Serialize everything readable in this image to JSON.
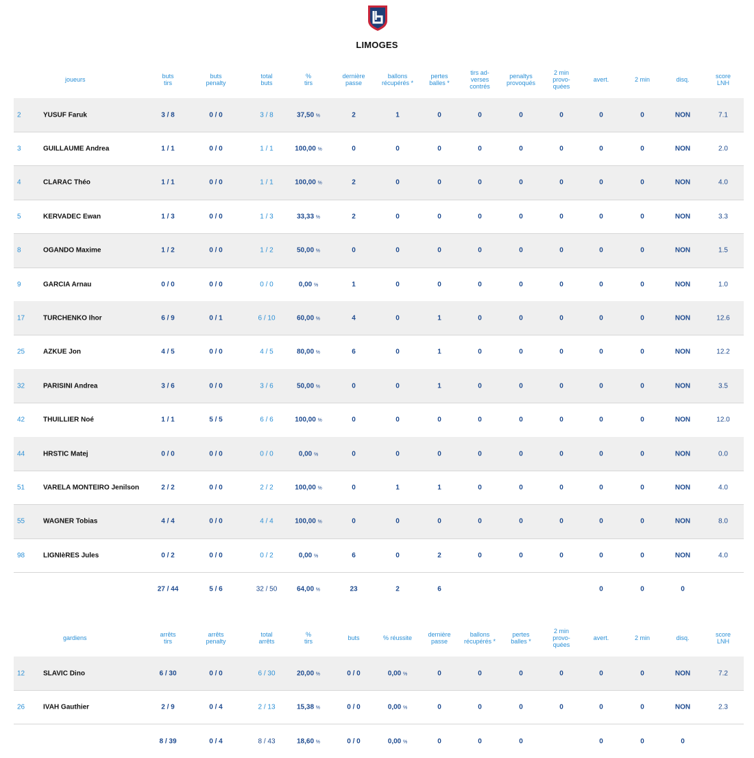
{
  "team": "LIMOGES",
  "logo_icon": "lnh-shield-icon",
  "players_headers": [
    "joueurs",
    "buts\ntirs",
    "buts\npenalty",
    "total\nbuts",
    "%\ntirs",
    "dernière\npasse",
    "ballons\nrécupérés *",
    "pertes\nballes *",
    "tirs ad-\nverses\ncontrés",
    "penaltys\nprovoqués",
    "2 min\nprovo-\nquées",
    "avert.",
    "2 min",
    "disq.",
    "score\nLNH"
  ],
  "players": [
    {
      "num": "2",
      "name": "YUSUF Faruk",
      "buts_tirs": "3 / 8",
      "penalty": "0 / 0",
      "total": "3 / 8",
      "pct": "37,50",
      "pct_unit": "%",
      "passe": "2",
      "recup": "1",
      "pertes": "0",
      "contres": "0",
      "penaltys": "0",
      "provo": "0",
      "avert": "0",
      "min2": "0",
      "disq": "NON",
      "score": "7.1"
    },
    {
      "num": "3",
      "name": "GUILLAUME Andrea",
      "buts_tirs": "1 / 1",
      "penalty": "0 / 0",
      "total": "1 / 1",
      "pct": "100,00",
      "pct_unit": "%",
      "passe": "0",
      "recup": "0",
      "pertes": "0",
      "contres": "0",
      "penaltys": "0",
      "provo": "0",
      "avert": "0",
      "min2": "0",
      "disq": "NON",
      "score": "2.0"
    },
    {
      "num": "4",
      "name": "CLARAC Théo",
      "buts_tirs": "1 / 1",
      "penalty": "0 / 0",
      "total": "1 / 1",
      "pct": "100,00",
      "pct_unit": "%",
      "passe": "2",
      "recup": "0",
      "pertes": "0",
      "contres": "0",
      "penaltys": "0",
      "provo": "0",
      "avert": "0",
      "min2": "0",
      "disq": "NON",
      "score": "4.0"
    },
    {
      "num": "5",
      "name": "KERVADEC Ewan",
      "buts_tirs": "1 / 3",
      "penalty": "0 / 0",
      "total": "1 / 3",
      "pct": "33,33",
      "pct_unit": "%",
      "passe": "2",
      "recup": "0",
      "pertes": "0",
      "contres": "0",
      "penaltys": "0",
      "provo": "0",
      "avert": "0",
      "min2": "0",
      "disq": "NON",
      "score": "3.3"
    },
    {
      "num": "8",
      "name": "OGANDO Maxime",
      "buts_tirs": "1 / 2",
      "penalty": "0 / 0",
      "total": "1 / 2",
      "pct": "50,00",
      "pct_unit": "%",
      "passe": "0",
      "recup": "0",
      "pertes": "0",
      "contres": "0",
      "penaltys": "0",
      "provo": "0",
      "avert": "0",
      "min2": "0",
      "disq": "NON",
      "score": "1.5"
    },
    {
      "num": "9",
      "name": "GARCIA Arnau",
      "buts_tirs": "0 / 0",
      "penalty": "0 / 0",
      "total": "0 / 0",
      "pct": "0,00",
      "pct_unit": "%",
      "passe": "1",
      "recup": "0",
      "pertes": "0",
      "contres": "0",
      "penaltys": "0",
      "provo": "0",
      "avert": "0",
      "min2": "0",
      "disq": "NON",
      "score": "1.0"
    },
    {
      "num": "17",
      "name": "TURCHENKO Ihor",
      "buts_tirs": "6 / 9",
      "penalty": "0 / 1",
      "total": "6 / 10",
      "pct": "60,00",
      "pct_unit": "%",
      "passe": "4",
      "recup": "0",
      "pertes": "1",
      "contres": "0",
      "penaltys": "0",
      "provo": "0",
      "avert": "0",
      "min2": "0",
      "disq": "NON",
      "score": "12.6"
    },
    {
      "num": "25",
      "name": "AZKUE Jon",
      "buts_tirs": "4 / 5",
      "penalty": "0 / 0",
      "total": "4 / 5",
      "pct": "80,00",
      "pct_unit": "%",
      "passe": "6",
      "recup": "0",
      "pertes": "1",
      "contres": "0",
      "penaltys": "0",
      "provo": "0",
      "avert": "0",
      "min2": "0",
      "disq": "NON",
      "score": "12.2"
    },
    {
      "num": "32",
      "name": "PARISINI Andrea",
      "buts_tirs": "3 / 6",
      "penalty": "0 / 0",
      "total": "3 / 6",
      "pct": "50,00",
      "pct_unit": "%",
      "passe": "0",
      "recup": "0",
      "pertes": "1",
      "contres": "0",
      "penaltys": "0",
      "provo": "0",
      "avert": "0",
      "min2": "0",
      "disq": "NON",
      "score": "3.5"
    },
    {
      "num": "42",
      "name": "THUILLIER Noé",
      "buts_tirs": "1 / 1",
      "penalty": "5 / 5",
      "total": "6 / 6",
      "pct": "100,00",
      "pct_unit": "%",
      "passe": "0",
      "recup": "0",
      "pertes": "0",
      "contres": "0",
      "penaltys": "0",
      "provo": "0",
      "avert": "0",
      "min2": "0",
      "disq": "NON",
      "score": "12.0"
    },
    {
      "num": "44",
      "name": "HRSTIC Matej",
      "buts_tirs": "0 / 0",
      "penalty": "0 / 0",
      "total": "0 / 0",
      "pct": "0,00",
      "pct_unit": "%",
      "passe": "0",
      "recup": "0",
      "pertes": "0",
      "contres": "0",
      "penaltys": "0",
      "provo": "0",
      "avert": "0",
      "min2": "0",
      "disq": "NON",
      "score": "0.0"
    },
    {
      "num": "51",
      "name": "VARELA MONTEIRO Jenilson",
      "buts_tirs": "2 / 2",
      "penalty": "0 / 0",
      "total": "2 / 2",
      "pct": "100,00",
      "pct_unit": "%",
      "passe": "0",
      "recup": "1",
      "pertes": "1",
      "contres": "0",
      "penaltys": "0",
      "provo": "0",
      "avert": "0",
      "min2": "0",
      "disq": "NON",
      "score": "4.0"
    },
    {
      "num": "55",
      "name": "WAGNER Tobias",
      "buts_tirs": "4 / 4",
      "penalty": "0 / 0",
      "total": "4 / 4",
      "pct": "100,00",
      "pct_unit": "%",
      "passe": "0",
      "recup": "0",
      "pertes": "0",
      "contres": "0",
      "penaltys": "0",
      "provo": "0",
      "avert": "0",
      "min2": "0",
      "disq": "NON",
      "score": "8.0"
    },
    {
      "num": "98",
      "name": "LIGNIèRES Jules",
      "buts_tirs": "0 / 2",
      "penalty": "0 / 0",
      "total": "0 / 2",
      "pct": "0,00",
      "pct_unit": "%",
      "passe": "6",
      "recup": "0",
      "pertes": "2",
      "contres": "0",
      "penaltys": "0",
      "provo": "0",
      "avert": "0",
      "min2": "0",
      "disq": "NON",
      "score": "4.0"
    }
  ],
  "players_totals": {
    "buts_tirs": "27 / 44",
    "penalty": "5 / 6",
    "total": "32 / 50",
    "pct": "64,00",
    "pct_unit": "%",
    "passe": "23",
    "recup": "2",
    "pertes": "6",
    "avert": "0",
    "min2": "0",
    "disq": "0"
  },
  "goalies_headers": [
    "gardiens",
    "arrêts\ntirs",
    "arrêts\npenalty",
    "total\narrêts",
    "%\ntirs",
    "buts",
    "% réussite",
    "dernière\npasse",
    "ballons\nrécupérés *",
    "pertes\nballes *",
    "2 min\nprovo-\nquées",
    "avert.",
    "2 min",
    "disq.",
    "score\nLNH"
  ],
  "goalies": [
    {
      "num": "12",
      "name": "SLAVIC Dino",
      "arrets_tirs": "6 / 30",
      "arrets_penalty": "0 / 0",
      "total": "6 / 30",
      "pct": "20,00",
      "pct_unit": "%",
      "buts": "0 / 0",
      "reussite": "0,00",
      "passe": "0",
      "recup": "0",
      "pertes": "0",
      "provo": "0",
      "avert": "0",
      "min2": "0",
      "disq": "NON",
      "score": "7.2"
    },
    {
      "num": "26",
      "name": "IVAH Gauthier",
      "arrets_tirs": "2 / 9",
      "arrets_penalty": "0 / 4",
      "total": "2 / 13",
      "pct": "15,38",
      "pct_unit": "%",
      "buts": "0 / 0",
      "reussite": "0,00",
      "passe": "0",
      "recup": "0",
      "pertes": "0",
      "provo": "0",
      "avert": "0",
      "min2": "0",
      "disq": "NON",
      "score": "2.3"
    }
  ],
  "goalies_totals": {
    "arrets_tirs": "8 / 39",
    "arrets_penalty": "0 / 4",
    "total": "8 / 43",
    "pct": "18,60",
    "pct_unit": "%",
    "buts": "0 / 0",
    "reussite": "0,00",
    "passe": "0",
    "recup": "0",
    "pertes": "0",
    "avert": "0",
    "min2": "0",
    "disq": "0"
  }
}
